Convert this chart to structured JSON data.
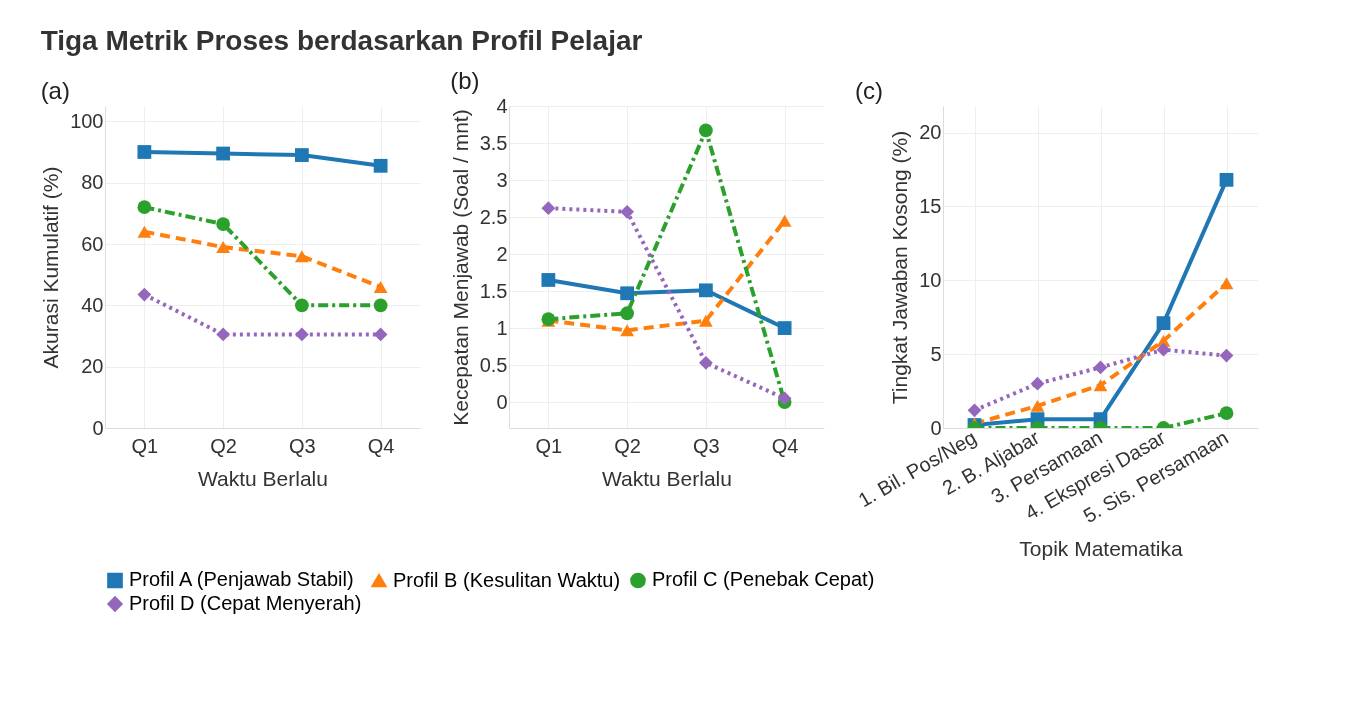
{
  "chart_data": [
    {
      "type": "line",
      "title": "Tiga Metrik Proses berdasarkan Profil Pelajar",
      "subtitle": "(a)",
      "xlabel": "Waktu Berlalu",
      "ylabel": "Akurasi Kumulatif (%)",
      "categories": [
        "Q1",
        "Q2",
        "Q3",
        "Q4"
      ],
      "ylim": [
        0,
        105
      ],
      "yticks": [
        0,
        20,
        40,
        60,
        80,
        100
      ],
      "grid": true,
      "legend": "bottom",
      "series": [
        {
          "name": "Profil A (Penjawab Stabil)",
          "color": "#1f77b4",
          "marker": "square",
          "line_style": "solid",
          "values": [
            90,
            89.5,
            89,
            85.5
          ]
        },
        {
          "name": "Profil B (Kesulitan Waktu)",
          "color": "#ff7f0e",
          "marker": "triangle",
          "line_style": "dashed",
          "values": [
            64,
            59,
            56,
            46
          ]
        },
        {
          "name": "Profil C (Penebak Cepat)",
          "color": "#2ca02c",
          "marker": "circle",
          "line_style": "dashdot",
          "values": [
            72,
            66.5,
            40,
            40
          ]
        },
        {
          "name": "Profil D (Cepat Menyerah)",
          "color": "#9467bd",
          "marker": "diamond",
          "line_style": "dotted",
          "values": [
            43.5,
            30.5,
            30.5,
            30.5
          ]
        }
      ]
    },
    {
      "type": "line",
      "subtitle": "(b)",
      "xlabel": "Waktu Berlalu",
      "ylabel": "Kecepatan Menjawab (Soal / mnt)",
      "categories": [
        "Q1",
        "Q2",
        "Q3",
        "Q4"
      ],
      "ylim": [
        -0.35,
        4
      ],
      "yticks": [
        0,
        0.5,
        1,
        1.5,
        2,
        2.5,
        3,
        3.5,
        4
      ],
      "grid": true,
      "legend": "bottom",
      "series": [
        {
          "name": "Profil A (Penjawab Stabil)",
          "color": "#1f77b4",
          "marker": "square",
          "line_style": "solid",
          "values": [
            1.65,
            1.47,
            1.51,
            1.0
          ]
        },
        {
          "name": "Profil B (Kesulitan Waktu)",
          "color": "#ff7f0e",
          "marker": "triangle",
          "line_style": "dashed",
          "values": [
            1.1,
            0.97,
            1.1,
            2.45
          ]
        },
        {
          "name": "Profil C (Penebak Cepat)",
          "color": "#2ca02c",
          "marker": "circle",
          "line_style": "dashdot",
          "values": [
            1.12,
            1.2,
            3.67,
            0.0
          ]
        },
        {
          "name": "Profil D (Cepat Menyerah)",
          "color": "#9467bd",
          "marker": "diamond",
          "line_style": "dotted",
          "values": [
            2.62,
            2.57,
            0.53,
            0.05
          ]
        }
      ]
    },
    {
      "type": "line",
      "subtitle": "(c)",
      "xlabel": "Topik Matematika",
      "ylabel": "Tingkat Jawaban Kosong (%)",
      "categories": [
        "1. Bil. Pos/Neg",
        "2. B. Aljabar",
        "3. Persamaan",
        "4. Ekspresi Dasar",
        "5. Sis. Persamaan"
      ],
      "ylim": [
        0,
        21.8
      ],
      "yticks": [
        0,
        5,
        10,
        15,
        20
      ],
      "grid": true,
      "legend": "bottom",
      "series": [
        {
          "name": "Profil A (Penjawab Stabil)",
          "color": "#1f77b4",
          "marker": "square",
          "line_style": "solid",
          "values": [
            0.2,
            0.6,
            0.6,
            7.1,
            16.8
          ]
        },
        {
          "name": "Profil B (Kesulitan Waktu)",
          "color": "#ff7f0e",
          "marker": "triangle",
          "line_style": "dashed",
          "values": [
            0.3,
            1.5,
            2.9,
            5.9,
            9.8
          ]
        },
        {
          "name": "Profil C (Penebak Cepat)",
          "color": "#2ca02c",
          "marker": "circle",
          "line_style": "dashdot",
          "values": [
            0,
            0,
            0,
            0,
            1.0
          ]
        },
        {
          "name": "Profil D (Cepat Menyerah)",
          "color": "#9467bd",
          "marker": "diamond",
          "line_style": "dotted",
          "values": [
            1.2,
            3.0,
            4.1,
            5.3,
            4.9
          ]
        }
      ]
    }
  ]
}
